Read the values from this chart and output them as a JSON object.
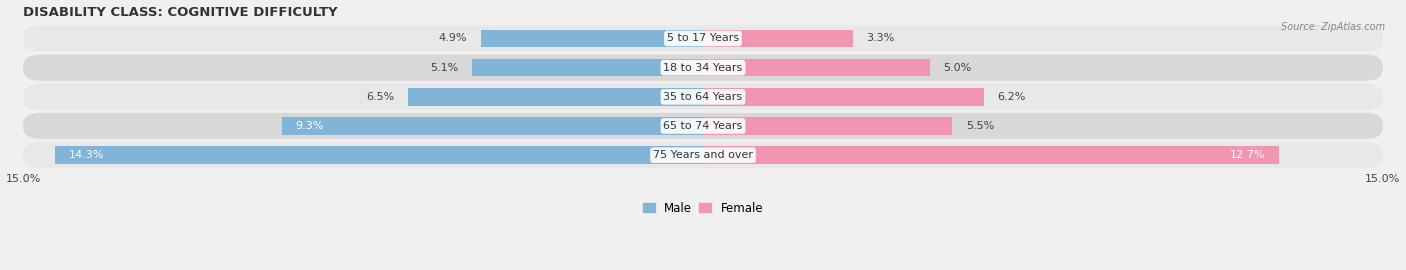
{
  "title": "DISABILITY CLASS: COGNITIVE DIFFICULTY",
  "source": "Source: ZipAtlas.com",
  "categories": [
    "5 to 17 Years",
    "18 to 34 Years",
    "35 to 64 Years",
    "65 to 74 Years",
    "75 Years and over"
  ],
  "male_values": [
    4.9,
    5.1,
    6.5,
    9.3,
    14.3
  ],
  "female_values": [
    3.3,
    5.0,
    6.2,
    5.5,
    12.7
  ],
  "male_color": "#82b4d8",
  "female_color": "#f096b0",
  "x_max": 15.0,
  "bar_height": 0.6,
  "row_bg_light": "#e8e8e8",
  "row_bg_dark": "#d8d8d8",
  "background_color": "#f0f0f0",
  "title_fontsize": 9.5,
  "label_fontsize": 8.0,
  "tick_fontsize": 8.0,
  "legend_fontsize": 8.5,
  "male_inside_threshold": 9.0,
  "female_inside_threshold": 12.0
}
